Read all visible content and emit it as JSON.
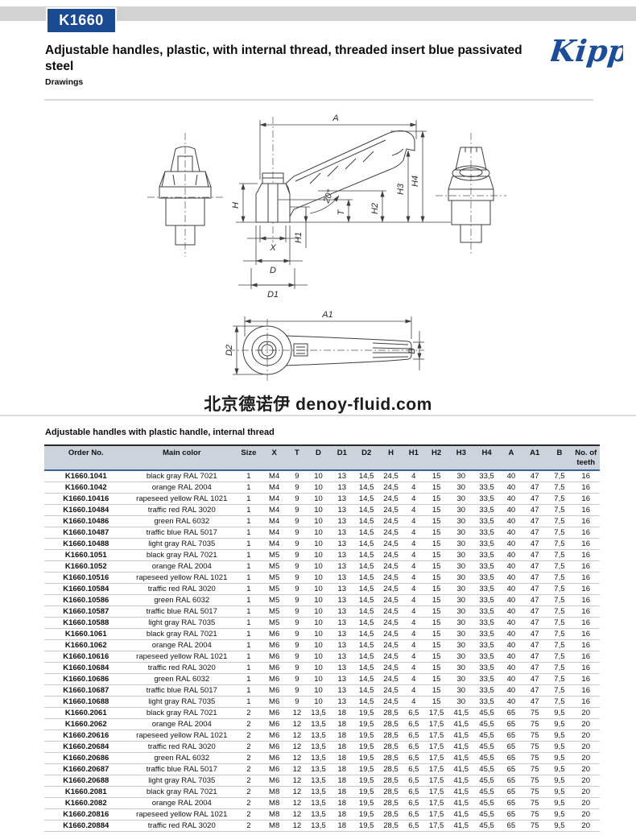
{
  "page": {
    "product_code": "K1660",
    "title": "Adjustable handles, plastic, with internal thread, threaded insert blue passivated steel",
    "subtitle": "Drawings",
    "brand": "Kipp",
    "watermark": "北京德诺伊 denoy-fluid.com"
  },
  "colors": {
    "badge_blue": "#1a4b92",
    "logo_blue": "#1d4d96",
    "header_bg": "#ccd3dc",
    "header_underline": "#3a659b",
    "top_band_gray": "#d2d2d2"
  },
  "drawing": {
    "labels": {
      "a": "A",
      "h": "H",
      "h1": "H1",
      "h2": "H2",
      "h3": "H3",
      "h4": "H4",
      "t": "T",
      "x": "X",
      "d": "D",
      "d1": "D1",
      "angle": "20°",
      "a1": "A1",
      "d2": "D2",
      "b": "B"
    }
  },
  "table": {
    "title": "Adjustable handles with plastic handle, internal thread",
    "columns": [
      "Order No.",
      "Main color",
      "Size",
      "X",
      "T",
      "D",
      "D1",
      "D2",
      "H",
      "H1",
      "H2",
      "H3",
      "H4",
      "A",
      "A1",
      "B",
      "No. of teeth"
    ],
    "rows": [
      [
        "K1660.1041",
        "black gray RAL 7021",
        "1",
        "M4",
        "9",
        "10",
        "13",
        "14,5",
        "24,5",
        "4",
        "15",
        "30",
        "33,5",
        "40",
        "47",
        "7,5",
        "16"
      ],
      [
        "K1660.1042",
        "orange RAL 2004",
        "1",
        "M4",
        "9",
        "10",
        "13",
        "14,5",
        "24,5",
        "4",
        "15",
        "30",
        "33,5",
        "40",
        "47",
        "7,5",
        "16"
      ],
      [
        "K1660.10416",
        "rapeseed yellow RAL 1021",
        "1",
        "M4",
        "9",
        "10",
        "13",
        "14,5",
        "24,5",
        "4",
        "15",
        "30",
        "33,5",
        "40",
        "47",
        "7,5",
        "16"
      ],
      [
        "K1660.10484",
        "traffic red RAL 3020",
        "1",
        "M4",
        "9",
        "10",
        "13",
        "14,5",
        "24,5",
        "4",
        "15",
        "30",
        "33,5",
        "40",
        "47",
        "7,5",
        "16"
      ],
      [
        "K1660.10486",
        "green RAL 6032",
        "1",
        "M4",
        "9",
        "10",
        "13",
        "14,5",
        "24,5",
        "4",
        "15",
        "30",
        "33,5",
        "40",
        "47",
        "7,5",
        "16"
      ],
      [
        "K1660.10487",
        "traffic blue RAL 5017",
        "1",
        "M4",
        "9",
        "10",
        "13",
        "14,5",
        "24,5",
        "4",
        "15",
        "30",
        "33,5",
        "40",
        "47",
        "7,5",
        "16"
      ],
      [
        "K1660.10488",
        "light gray RAL 7035",
        "1",
        "M4",
        "9",
        "10",
        "13",
        "14,5",
        "24,5",
        "4",
        "15",
        "30",
        "33,5",
        "40",
        "47",
        "7,5",
        "16"
      ],
      [
        "K1660.1051",
        "black gray RAL 7021",
        "1",
        "M5",
        "9",
        "10",
        "13",
        "14,5",
        "24,5",
        "4",
        "15",
        "30",
        "33,5",
        "40",
        "47",
        "7,5",
        "16"
      ],
      [
        "K1660.1052",
        "orange RAL 2004",
        "1",
        "M5",
        "9",
        "10",
        "13",
        "14,5",
        "24,5",
        "4",
        "15",
        "30",
        "33,5",
        "40",
        "47",
        "7,5",
        "16"
      ],
      [
        "K1660.10516",
        "rapeseed yellow RAL 1021",
        "1",
        "M5",
        "9",
        "10",
        "13",
        "14,5",
        "24,5",
        "4",
        "15",
        "30",
        "33,5",
        "40",
        "47",
        "7,5",
        "16"
      ],
      [
        "K1660.10584",
        "traffic red RAL 3020",
        "1",
        "M5",
        "9",
        "10",
        "13",
        "14,5",
        "24,5",
        "4",
        "15",
        "30",
        "33,5",
        "40",
        "47",
        "7,5",
        "16"
      ],
      [
        "K1660.10586",
        "green RAL 6032",
        "1",
        "M5",
        "9",
        "10",
        "13",
        "14,5",
        "24,5",
        "4",
        "15",
        "30",
        "33,5",
        "40",
        "47",
        "7,5",
        "16"
      ],
      [
        "K1660.10587",
        "traffic blue RAL 5017",
        "1",
        "M5",
        "9",
        "10",
        "13",
        "14,5",
        "24,5",
        "4",
        "15",
        "30",
        "33,5",
        "40",
        "47",
        "7,5",
        "16"
      ],
      [
        "K1660.10588",
        "light gray RAL 7035",
        "1",
        "M5",
        "9",
        "10",
        "13",
        "14,5",
        "24,5",
        "4",
        "15",
        "30",
        "33,5",
        "40",
        "47",
        "7,5",
        "16"
      ],
      [
        "K1660.1061",
        "black gray RAL 7021",
        "1",
        "M6",
        "9",
        "10",
        "13",
        "14,5",
        "24,5",
        "4",
        "15",
        "30",
        "33,5",
        "40",
        "47",
        "7,5",
        "16"
      ],
      [
        "K1660.1062",
        "orange RAL 2004",
        "1",
        "M6",
        "9",
        "10",
        "13",
        "14,5",
        "24,5",
        "4",
        "15",
        "30",
        "33,5",
        "40",
        "47",
        "7,5",
        "16"
      ],
      [
        "K1660.10616",
        "rapeseed yellow RAL 1021",
        "1",
        "M6",
        "9",
        "10",
        "13",
        "14,5",
        "24,5",
        "4",
        "15",
        "30",
        "33,5",
        "40",
        "47",
        "7,5",
        "16"
      ],
      [
        "K1660.10684",
        "traffic red RAL 3020",
        "1",
        "M6",
        "9",
        "10",
        "13",
        "14,5",
        "24,5",
        "4",
        "15",
        "30",
        "33,5",
        "40",
        "47",
        "7,5",
        "16"
      ],
      [
        "K1660.10686",
        "green RAL 6032",
        "1",
        "M6",
        "9",
        "10",
        "13",
        "14,5",
        "24,5",
        "4",
        "15",
        "30",
        "33,5",
        "40",
        "47",
        "7,5",
        "16"
      ],
      [
        "K1660.10687",
        "traffic blue RAL 5017",
        "1",
        "M6",
        "9",
        "10",
        "13",
        "14,5",
        "24,5",
        "4",
        "15",
        "30",
        "33,5",
        "40",
        "47",
        "7,5",
        "16"
      ],
      [
        "K1660.10688",
        "light gray RAL 7035",
        "1",
        "M6",
        "9",
        "10",
        "13",
        "14,5",
        "24,5",
        "4",
        "15",
        "30",
        "33,5",
        "40",
        "47",
        "7,5",
        "16"
      ],
      [
        "K1660.2061",
        "black gray RAL 7021",
        "2",
        "M6",
        "12",
        "13,5",
        "18",
        "19,5",
        "28,5",
        "6,5",
        "17,5",
        "41,5",
        "45,5",
        "65",
        "75",
        "9,5",
        "20"
      ],
      [
        "K1660.2062",
        "orange RAL 2004",
        "2",
        "M6",
        "12",
        "13,5",
        "18",
        "19,5",
        "28,5",
        "6,5",
        "17,5",
        "41,5",
        "45,5",
        "65",
        "75",
        "9,5",
        "20"
      ],
      [
        "K1660.20616",
        "rapeseed yellow RAL 1021",
        "2",
        "M6",
        "12",
        "13,5",
        "18",
        "19,5",
        "28,5",
        "6,5",
        "17,5",
        "41,5",
        "45,5",
        "65",
        "75",
        "9,5",
        "20"
      ],
      [
        "K1660.20684",
        "traffic red RAL 3020",
        "2",
        "M6",
        "12",
        "13,5",
        "18",
        "19,5",
        "28,5",
        "6,5",
        "17,5",
        "41,5",
        "45,5",
        "65",
        "75",
        "9,5",
        "20"
      ],
      [
        "K1660.20686",
        "green RAL 6032",
        "2",
        "M6",
        "12",
        "13,5",
        "18",
        "19,5",
        "28,5",
        "6,5",
        "17,5",
        "41,5",
        "45,5",
        "65",
        "75",
        "9,5",
        "20"
      ],
      [
        "K1660.20687",
        "traffic blue RAL 5017",
        "2",
        "M6",
        "12",
        "13,5",
        "18",
        "19,5",
        "28,5",
        "6,5",
        "17,5",
        "41,5",
        "45,5",
        "65",
        "75",
        "9,5",
        "20"
      ],
      [
        "K1660.20688",
        "light gray RAL 7035",
        "2",
        "M6",
        "12",
        "13,5",
        "18",
        "19,5",
        "28,5",
        "6,5",
        "17,5",
        "41,5",
        "45,5",
        "65",
        "75",
        "9,5",
        "20"
      ],
      [
        "K1660.2081",
        "black gray RAL 7021",
        "2",
        "M8",
        "12",
        "13,5",
        "18",
        "19,5",
        "28,5",
        "6,5",
        "17,5",
        "41,5",
        "45,5",
        "65",
        "75",
        "9,5",
        "20"
      ],
      [
        "K1660.2082",
        "orange RAL 2004",
        "2",
        "M8",
        "12",
        "13,5",
        "18",
        "19,5",
        "28,5",
        "6,5",
        "17,5",
        "41,5",
        "45,5",
        "65",
        "75",
        "9,5",
        "20"
      ],
      [
        "K1660.20816",
        "rapeseed yellow RAL 1021",
        "2",
        "M8",
        "12",
        "13,5",
        "18",
        "19,5",
        "28,5",
        "6,5",
        "17,5",
        "41,5",
        "45,5",
        "65",
        "75",
        "9,5",
        "20"
      ],
      [
        "K1660.20884",
        "traffic red RAL 3020",
        "2",
        "M8",
        "12",
        "13,5",
        "18",
        "19,5",
        "28,5",
        "6,5",
        "17,5",
        "41,5",
        "45,5",
        "65",
        "75",
        "9,5",
        "20"
      ]
    ]
  }
}
